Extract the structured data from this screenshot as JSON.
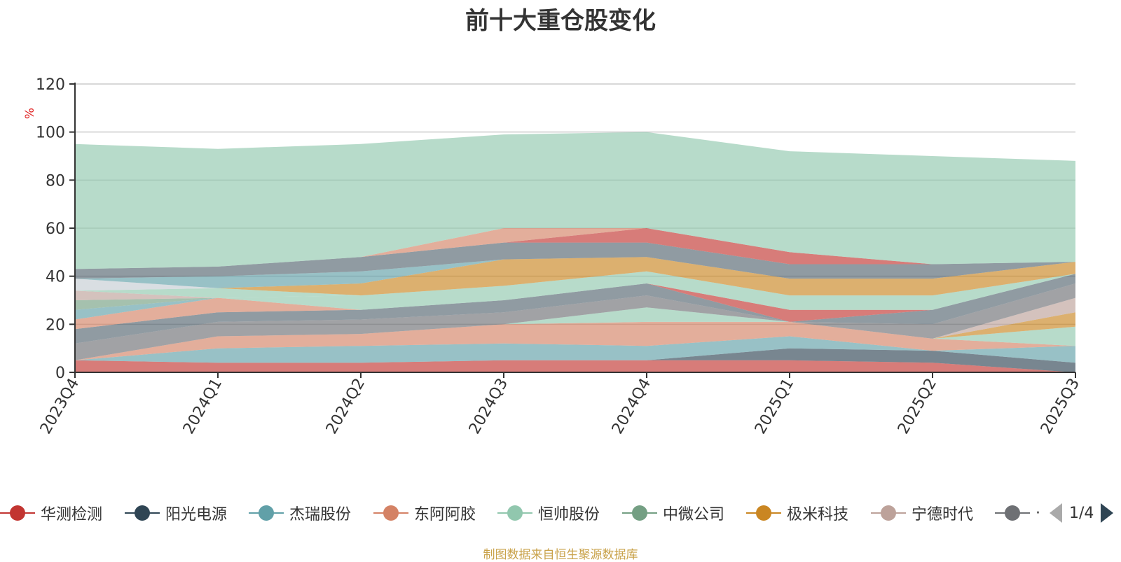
{
  "chart_data": {
    "type": "area",
    "stacked": true,
    "title": "前十大重仓股变化",
    "ylabel": "%",
    "ylim": [
      0,
      120
    ],
    "yticks": [
      0,
      20,
      40,
      60,
      80,
      100,
      120
    ],
    "grid": true,
    "categories": [
      "2023Q4",
      "2024Q1",
      "2024Q2",
      "2024Q3",
      "2024Q4",
      "2025Q1",
      "2025Q2",
      "2025Q3"
    ],
    "series": [
      {
        "name": "华测检测",
        "color": "#c23531",
        "values": [
          5,
          4,
          4,
          5,
          5,
          5,
          4,
          0
        ]
      },
      {
        "name": "阳光电源",
        "color": "#2f4554",
        "values": [
          0,
          0,
          0,
          0,
          0,
          5,
          5,
          4
        ]
      },
      {
        "name": "杰瑞股份",
        "color": "#61a0a8",
        "values": [
          0,
          6,
          7,
          7,
          6,
          5,
          0,
          7
        ]
      },
      {
        "name": "东阿阿胶",
        "color": "#d48265",
        "values": [
          0,
          5,
          5,
          8,
          10,
          6,
          5,
          0
        ]
      },
      {
        "name": "恒帅股份",
        "color": "#91c7ae",
        "values": [
          0,
          0,
          0,
          0,
          6,
          0,
          0,
          8
        ]
      },
      {
        "name": "中微公司",
        "color": "#749f83",
        "values": [
          0,
          0,
          0,
          0,
          0,
          0,
          0,
          0
        ]
      },
      {
        "name": "极米科技",
        "color": "#ca8622",
        "values": [
          0,
          0,
          0,
          0,
          0,
          0,
          0,
          6
        ]
      },
      {
        "name": "宁德时代",
        "color": "#bda29a",
        "values": [
          0,
          0,
          0,
          0,
          0,
          0,
          0,
          6
        ]
      },
      {
        "name": "·",
        "color": "#6e7074",
        "values": [
          7,
          6,
          6,
          5,
          5,
          0,
          6,
          6
        ]
      },
      {
        "name": "",
        "color": "#546570",
        "values": [
          6,
          4,
          4,
          5,
          5,
          0,
          6,
          4
        ]
      },
      {
        "name": "",
        "color": "#c23531",
        "values": [
          0,
          0,
          0,
          0,
          0,
          5,
          0,
          0
        ]
      },
      {
        "name": "",
        "color": "#c4ccd3",
        "values": [
          0,
          0,
          0,
          0,
          0,
          0,
          0,
          0
        ]
      },
      {
        "name": "",
        "color": "#d48265",
        "values": [
          4,
          6,
          0,
          0,
          0,
          0,
          0,
          0
        ]
      },
      {
        "name": "",
        "color": "#61a0a8",
        "values": [
          4,
          0,
          0,
          0,
          0,
          0,
          0,
          0
        ]
      },
      {
        "name": "",
        "color": "#91c7ae",
        "values": [
          0,
          0,
          6,
          6,
          5,
          6,
          6,
          0
        ]
      },
      {
        "name": "",
        "color": "#749f83",
        "values": [
          4,
          0,
          0,
          0,
          0,
          0,
          0,
          0
        ]
      },
      {
        "name": "",
        "color": "#bda29a",
        "values": [
          4,
          0,
          0,
          0,
          0,
          0,
          0,
          0
        ]
      },
      {
        "name": "",
        "color": "#91c7ae",
        "values": [
          0,
          4,
          0,
          0,
          0,
          0,
          0,
          0
        ]
      },
      {
        "name": "",
        "color": "#ca8622",
        "values": [
          0,
          0,
          5,
          11,
          6,
          7,
          7,
          5
        ]
      },
      {
        "name": "",
        "color": "#c4ccd3",
        "values": [
          5,
          0,
          0,
          0,
          0,
          0,
          0,
          0
        ]
      },
      {
        "name": "",
        "color": "#61a0a8",
        "values": [
          0,
          5,
          5,
          0,
          0,
          0,
          0,
          0
        ]
      },
      {
        "name": "",
        "color": "#546570",
        "values": [
          4,
          4,
          6,
          7,
          6,
          6,
          6,
          0
        ]
      },
      {
        "name": "",
        "color": "#c23531",
        "values": [
          0,
          0,
          0,
          0,
          6,
          5,
          0,
          0
        ]
      },
      {
        "name": "",
        "color": "#d48265",
        "values": [
          0,
          0,
          0,
          6,
          0,
          0,
          0,
          0
        ]
      },
      {
        "name": "",
        "color": "#91c7ae",
        "values": [
          52,
          49,
          47,
          39,
          40,
          42,
          45,
          42
        ]
      }
    ],
    "legend": {
      "position": "bottom",
      "page": "1/4"
    },
    "source_note": "制图数据来自恒生聚源数据库"
  }
}
